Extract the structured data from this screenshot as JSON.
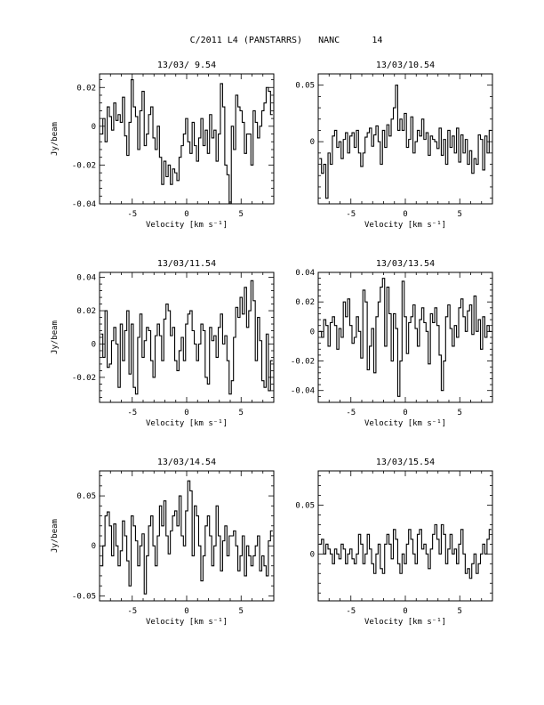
{
  "figure": {
    "title": "C/2011 L4 (PANSTARRS)   NANC      14"
  },
  "chart_data": [
    {
      "type": "line",
      "title": "13/03/ 9.54",
      "xlabel": "Velocity [km s⁻¹]",
      "ylabel": "Jy/beam",
      "xlim": [
        -8,
        8
      ],
      "ylim": [
        -0.04,
        0.027
      ],
      "xticks": [
        -5,
        0,
        5
      ],
      "xtick_labels": [
        "-5",
        "0",
        "5"
      ],
      "yticks": [
        -0.04,
        -0.02,
        0,
        0.02
      ],
      "ytick_labels": [
        "-0.04",
        "-0.02",
        "0",
        "0.02"
      ],
      "x": [
        -7.8,
        -7.6,
        -7.4,
        -7.2,
        -7.0,
        -6.8,
        -6.6,
        -6.4,
        -6.2,
        -6.0,
        -5.8,
        -5.6,
        -5.4,
        -5.2,
        -5.0,
        -4.8,
        -4.6,
        -4.4,
        -4.2,
        -4.0,
        -3.8,
        -3.6,
        -3.4,
        -3.2,
        -3.0,
        -2.8,
        -2.6,
        -2.4,
        -2.2,
        -2.0,
        -1.8,
        -1.6,
        -1.4,
        -1.2,
        -1.0,
        -0.8,
        -0.6,
        -0.4,
        -0.2,
        0.0,
        0.2,
        0.4,
        0.6,
        0.8,
        1.0,
        1.2,
        1.4,
        1.6,
        1.8,
        2.0,
        2.2,
        2.4,
        2.6,
        2.8,
        3.0,
        3.2,
        3.4,
        3.6,
        3.8,
        4.0,
        4.2,
        4.4,
        4.6,
        4.8,
        5.0,
        5.2,
        5.4,
        5.6,
        5.8,
        6.0,
        6.2,
        6.4,
        6.6,
        6.8,
        7.0,
        7.2,
        7.4,
        7.6,
        7.8
      ],
      "values": [
        -0.004,
        0.004,
        -0.008,
        0.01,
        0.005,
        -0.002,
        0.012,
        0.003,
        0.006,
        0.002,
        0.015,
        -0.005,
        -0.015,
        0.002,
        0.024,
        0.01,
        0.005,
        -0.012,
        0.008,
        0.018,
        -0.01,
        -0.004,
        0.006,
        0.01,
        -0.006,
        -0.012,
        0.0,
        -0.016,
        -0.03,
        -0.018,
        -0.026,
        -0.02,
        -0.03,
        -0.022,
        -0.024,
        -0.028,
        -0.016,
        -0.01,
        -0.004,
        0.004,
        -0.008,
        -0.014,
        0.002,
        -0.01,
        -0.018,
        -0.006,
        0.004,
        -0.01,
        -0.002,
        -0.014,
        0.006,
        -0.006,
        -0.002,
        -0.018,
        -0.004,
        0.022,
        0.01,
        -0.02,
        -0.025,
        -0.04,
        0.0,
        -0.012,
        0.016,
        0.01,
        0.008,
        0.002,
        -0.014,
        -0.004,
        -0.004,
        -0.02,
        0.008,
        0.002,
        -0.006,
        0.0,
        0.008,
        0.012,
        0.02,
        0.018,
        0.006
      ]
    },
    {
      "type": "line",
      "title": "13/03/10.54",
      "xlabel": "Velocity [km s⁻¹]",
      "ylabel": "",
      "xlim": [
        -8,
        8
      ],
      "ylim": [
        -0.055,
        0.06
      ],
      "xticks": [
        -5,
        0,
        5
      ],
      "xtick_labels": [
        "-5",
        "0",
        "5"
      ],
      "yticks": [
        0,
        0.05
      ],
      "ytick_labels": [
        "0",
        "0.05"
      ],
      "x": [
        -7.8,
        -7.6,
        -7.4,
        -7.2,
        -7.0,
        -6.8,
        -6.6,
        -6.4,
        -6.2,
        -6.0,
        -5.8,
        -5.6,
        -5.4,
        -5.2,
        -5.0,
        -4.8,
        -4.6,
        -4.4,
        -4.2,
        -4.0,
        -3.8,
        -3.6,
        -3.4,
        -3.2,
        -3.0,
        -2.8,
        -2.6,
        -2.4,
        -2.2,
        -2.0,
        -1.8,
        -1.6,
        -1.4,
        -1.2,
        -1.0,
        -0.8,
        -0.6,
        -0.4,
        -0.2,
        0.0,
        0.2,
        0.4,
        0.6,
        0.8,
        1.0,
        1.2,
        1.4,
        1.6,
        1.8,
        2.0,
        2.2,
        2.4,
        2.6,
        2.8,
        3.0,
        3.2,
        3.4,
        3.6,
        3.8,
        4.0,
        4.2,
        4.4,
        4.6,
        4.8,
        5.0,
        5.2,
        5.4,
        5.6,
        5.8,
        6.0,
        6.2,
        6.4,
        6.6,
        6.8,
        7.0,
        7.2,
        7.4,
        7.6,
        7.8
      ],
      "values": [
        -0.015,
        -0.028,
        -0.02,
        -0.05,
        -0.01,
        -0.02,
        0.005,
        0.01,
        -0.005,
        0.0,
        -0.015,
        0.002,
        0.008,
        -0.01,
        0.005,
        0.008,
        -0.005,
        0.01,
        -0.01,
        -0.022,
        -0.01,
        0.004,
        0.008,
        0.012,
        -0.004,
        0.006,
        0.014,
        0.0,
        -0.02,
        0.01,
        -0.005,
        0.015,
        0.005,
        0.02,
        0.03,
        0.05,
        0.01,
        0.02,
        0.01,
        0.025,
        -0.005,
        0.002,
        0.022,
        -0.01,
        0.0,
        0.01,
        0.005,
        0.02,
        0.002,
        0.008,
        -0.012,
        0.005,
        0.002,
        0.0,
        -0.006,
        0.012,
        -0.012,
        0.002,
        -0.02,
        0.01,
        -0.005,
        0.005,
        -0.01,
        0.012,
        -0.018,
        0.006,
        -0.01,
        0.002,
        -0.02,
        -0.008,
        -0.028,
        -0.015,
        -0.02,
        0.006,
        0.002,
        -0.025,
        0.005,
        -0.01,
        0.01
      ]
    },
    {
      "type": "line",
      "title": "13/03/11.54",
      "xlabel": "Velocity [km s⁻¹]",
      "ylabel": "Jy/beam",
      "xlim": [
        -8,
        8
      ],
      "ylim": [
        -0.035,
        0.043
      ],
      "xticks": [
        -5,
        0,
        5
      ],
      "xtick_labels": [
        "-5",
        "0",
        "5"
      ],
      "yticks": [
        -0.02,
        0,
        0.02,
        0.04
      ],
      "ytick_labels": [
        "-0.02",
        "0",
        "0.02",
        "0.04"
      ],
      "x": [
        -7.8,
        -7.6,
        -7.4,
        -7.2,
        -7.0,
        -6.8,
        -6.6,
        -6.4,
        -6.2,
        -6.0,
        -5.8,
        -5.6,
        -5.4,
        -5.2,
        -5.0,
        -4.8,
        -4.6,
        -4.4,
        -4.2,
        -4.0,
        -3.8,
        -3.6,
        -3.4,
        -3.2,
        -3.0,
        -2.8,
        -2.6,
        -2.4,
        -2.2,
        -2.0,
        -1.8,
        -1.6,
        -1.4,
        -1.2,
        -1.0,
        -0.8,
        -0.6,
        -0.4,
        -0.2,
        0.0,
        0.2,
        0.4,
        0.6,
        0.8,
        1.0,
        1.2,
        1.4,
        1.6,
        1.8,
        2.0,
        2.2,
        2.4,
        2.6,
        2.8,
        3.0,
        3.2,
        3.4,
        3.6,
        3.8,
        4.0,
        4.2,
        4.4,
        4.6,
        4.8,
        5.0,
        5.2,
        5.4,
        5.6,
        5.8,
        6.0,
        6.2,
        6.4,
        6.6,
        6.8,
        7.0,
        7.2,
        7.4,
        7.6,
        7.8
      ],
      "values": [
        0.006,
        -0.008,
        0.02,
        -0.014,
        -0.012,
        0.002,
        0.01,
        0.0,
        -0.026,
        0.012,
        -0.01,
        0.008,
        0.02,
        -0.018,
        0.012,
        -0.026,
        -0.03,
        0.004,
        0.018,
        -0.008,
        0.002,
        0.01,
        0.008,
        -0.01,
        -0.02,
        0.005,
        0.012,
        0.005,
        -0.01,
        0.015,
        0.024,
        0.02,
        0.005,
        0.01,
        -0.01,
        -0.016,
        -0.004,
        0.004,
        -0.01,
        0.012,
        0.018,
        0.02,
        0.008,
        0.0,
        -0.01,
        0.0,
        0.012,
        0.008,
        -0.02,
        -0.024,
        0.01,
        0.002,
        0.005,
        -0.008,
        0.01,
        0.018,
        0.0,
        0.005,
        -0.01,
        -0.03,
        -0.022,
        0.004,
        0.022,
        0.016,
        0.028,
        0.018,
        0.034,
        0.01,
        0.02,
        0.038,
        0.026,
        -0.01,
        0.016,
        0.002,
        -0.022,
        -0.026,
        0.006,
        -0.028,
        -0.01
      ]
    },
    {
      "type": "line",
      "title": "13/03/13.54",
      "xlabel": "Velocity [km s⁻¹]",
      "ylabel": "",
      "xlim": [
        -8,
        8
      ],
      "ylim": [
        -0.048,
        0.04
      ],
      "xticks": [
        -5,
        0,
        5
      ],
      "xtick_labels": [
        "-5",
        "0",
        "5"
      ],
      "yticks": [
        -0.04,
        -0.02,
        0,
        0.02,
        0.04
      ],
      "ytick_labels": [
        "-0.04",
        "-0.02",
        "0",
        "0.02",
        "0.04"
      ],
      "x": [
        -7.8,
        -7.6,
        -7.4,
        -7.2,
        -7.0,
        -6.8,
        -6.6,
        -6.4,
        -6.2,
        -6.0,
        -5.8,
        -5.6,
        -5.4,
        -5.2,
        -5.0,
        -4.8,
        -4.6,
        -4.4,
        -4.2,
        -4.0,
        -3.8,
        -3.6,
        -3.4,
        -3.2,
        -3.0,
        -2.8,
        -2.6,
        -2.4,
        -2.2,
        -2.0,
        -1.8,
        -1.6,
        -1.4,
        -1.2,
        -1.0,
        -0.8,
        -0.6,
        -0.4,
        -0.2,
        0.0,
        0.2,
        0.4,
        0.6,
        0.8,
        1.0,
        1.2,
        1.4,
        1.6,
        1.8,
        2.0,
        2.2,
        2.4,
        2.6,
        2.8,
        3.0,
        3.2,
        3.4,
        3.6,
        3.8,
        4.0,
        4.2,
        4.4,
        4.6,
        4.8,
        5.0,
        5.2,
        5.4,
        5.6,
        5.8,
        6.0,
        6.2,
        6.4,
        6.6,
        6.8,
        7.0,
        7.2,
        7.4,
        7.6,
        7.8
      ],
      "values": [
        0.0,
        -0.004,
        0.008,
        0.004,
        -0.01,
        0.006,
        0.01,
        0.004,
        -0.012,
        0.002,
        -0.004,
        0.02,
        0.01,
        0.022,
        0.004,
        -0.008,
        -0.004,
        0.01,
        0.0,
        -0.018,
        0.028,
        0.02,
        -0.026,
        -0.01,
        0.002,
        -0.028,
        0.01,
        0.02,
        0.03,
        0.036,
        -0.01,
        0.03,
        0.012,
        -0.02,
        0.012,
        0.002,
        -0.044,
        -0.02,
        0.034,
        0.01,
        -0.015,
        0.006,
        0.01,
        0.018,
        0.002,
        -0.01,
        0.008,
        0.016,
        0.006,
        0.0,
        -0.022,
        0.012,
        0.006,
        0.016,
        0.004,
        -0.016,
        -0.04,
        -0.02,
        0.01,
        0.018,
        0.002,
        -0.01,
        0.004,
        -0.004,
        0.016,
        0.022,
        0.01,
        0.0,
        0.014,
        0.018,
        -0.002,
        0.024,
        0.0,
        0.008,
        -0.012,
        0.01,
        -0.004,
        0.004,
        0.0
      ]
    },
    {
      "type": "line",
      "title": "13/03/14.54",
      "xlabel": "Velocity [km s⁻¹]",
      "ylabel": "Jy/beam",
      "xlim": [
        -8,
        8
      ],
      "ylim": [
        -0.055,
        0.075
      ],
      "xticks": [
        -5,
        0,
        5
      ],
      "xtick_labels": [
        "-5",
        "0",
        "5"
      ],
      "yticks": [
        -0.05,
        0,
        0.05
      ],
      "ytick_labels": [
        "-0.05",
        "0",
        "0.05"
      ],
      "x": [
        -7.8,
        -7.6,
        -7.4,
        -7.2,
        -7.0,
        -6.8,
        -6.6,
        -6.4,
        -6.2,
        -6.0,
        -5.8,
        -5.6,
        -5.4,
        -5.2,
        -5.0,
        -4.8,
        -4.6,
        -4.4,
        -4.2,
        -4.0,
        -3.8,
        -3.6,
        -3.4,
        -3.2,
        -3.0,
        -2.8,
        -2.6,
        -2.4,
        -2.2,
        -2.0,
        -1.8,
        -1.6,
        -1.4,
        -1.2,
        -1.0,
        -0.8,
        -0.6,
        -0.4,
        -0.2,
        0.0,
        0.2,
        0.4,
        0.6,
        0.8,
        1.0,
        1.2,
        1.4,
        1.6,
        1.8,
        2.0,
        2.2,
        2.4,
        2.6,
        2.8,
        3.0,
        3.2,
        3.4,
        3.6,
        3.8,
        4.0,
        4.2,
        4.4,
        4.6,
        4.8,
        5.0,
        5.2,
        5.4,
        5.6,
        5.8,
        6.0,
        6.2,
        6.4,
        6.6,
        6.8,
        7.0,
        7.2,
        7.4,
        7.6,
        7.8
      ],
      "values": [
        -0.02,
        0.0,
        0.03,
        0.034,
        0.02,
        -0.01,
        0.022,
        0.0,
        -0.02,
        -0.005,
        0.025,
        0.01,
        -0.015,
        -0.04,
        0.03,
        0.02,
        0.005,
        -0.02,
        0.0,
        0.012,
        -0.048,
        -0.01,
        0.02,
        0.03,
        0.0,
        -0.02,
        0.01,
        0.04,
        0.02,
        0.045,
        0.01,
        -0.008,
        0.015,
        0.03,
        0.035,
        0.02,
        0.05,
        0.01,
        0.0,
        0.035,
        0.065,
        0.055,
        -0.01,
        0.04,
        0.03,
        0.0,
        -0.035,
        -0.01,
        0.02,
        0.03,
        0.01,
        -0.02,
        0.0,
        0.04,
        0.01,
        -0.025,
        0.005,
        0.02,
        -0.01,
        0.01,
        0.01,
        0.015,
        0.0,
        -0.025,
        -0.01,
        0.01,
        -0.03,
        0.0,
        -0.01,
        -0.02,
        -0.01,
        0.0,
        0.01,
        -0.025,
        -0.01,
        -0.02,
        -0.03,
        0.005,
        0.015
      ]
    },
    {
      "type": "line",
      "title": "13/03/15.54",
      "xlabel": "Velocity [km s⁻¹]",
      "ylabel": "",
      "xlim": [
        -8,
        8
      ],
      "ylim": [
        -0.048,
        0.085
      ],
      "xticks": [
        -5,
        0,
        5
      ],
      "xtick_labels": [
        "-5",
        "0",
        "5"
      ],
      "yticks": [
        0,
        0.05
      ],
      "ytick_labels": [
        "0",
        "0.05"
      ],
      "x": [
        -7.8,
        -7.6,
        -7.4,
        -7.2,
        -7.0,
        -6.8,
        -6.6,
        -6.4,
        -6.2,
        -6.0,
        -5.8,
        -5.6,
        -5.4,
        -5.2,
        -5.0,
        -4.8,
        -4.6,
        -4.4,
        -4.2,
        -4.0,
        -3.8,
        -3.6,
        -3.4,
        -3.2,
        -3.0,
        -2.8,
        -2.6,
        -2.4,
        -2.2,
        -2.0,
        -1.8,
        -1.6,
        -1.4,
        -1.2,
        -1.0,
        -0.8,
        -0.6,
        -0.4,
        -0.2,
        0.0,
        0.2,
        0.4,
        0.6,
        0.8,
        1.0,
        1.2,
        1.4,
        1.6,
        1.8,
        2.0,
        2.2,
        2.4,
        2.6,
        2.8,
        3.0,
        3.2,
        3.4,
        3.6,
        3.8,
        4.0,
        4.2,
        4.4,
        4.6,
        4.8,
        5.0,
        5.2,
        5.4,
        5.6,
        5.8,
        6.0,
        6.2,
        6.4,
        6.6,
        6.8,
        7.0,
        7.2,
        7.4,
        7.6,
        7.8
      ],
      "values": [
        0.01,
        0.015,
        0.0,
        0.01,
        0.005,
        0.0,
        -0.01,
        0.005,
        0.0,
        -0.005,
        0.01,
        0.005,
        -0.01,
        0.0,
        0.005,
        -0.005,
        -0.01,
        0.0,
        0.02,
        0.01,
        -0.01,
        0.0,
        0.02,
        0.005,
        -0.01,
        -0.02,
        0.0,
        0.01,
        -0.015,
        -0.02,
        0.01,
        0.02,
        0.01,
        -0.005,
        0.025,
        0.015,
        -0.01,
        -0.02,
        0.0,
        -0.01,
        0.01,
        0.025,
        0.015,
        0.0,
        -0.01,
        0.02,
        0.025,
        0.005,
        0.01,
        0.0,
        -0.015,
        0.005,
        0.02,
        0.03,
        0.015,
        0.0,
        0.03,
        0.02,
        -0.01,
        0.005,
        0.02,
        0.0,
        0.005,
        -0.01,
        0.01,
        0.025,
        0.0,
        -0.02,
        -0.015,
        -0.025,
        -0.01,
        0.0,
        -0.02,
        -0.01,
        0.0,
        0.01,
        0.0,
        0.015,
        0.025
      ]
    }
  ]
}
